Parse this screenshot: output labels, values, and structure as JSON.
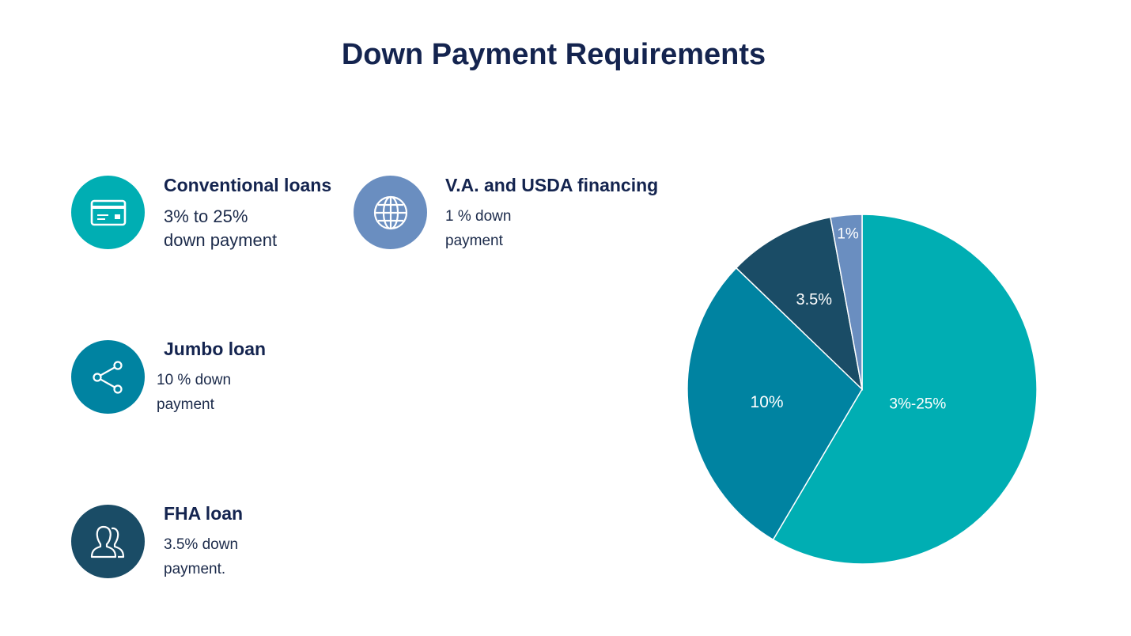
{
  "title": "Down Payment Requirements",
  "items": [
    {
      "title": "Conventional loans",
      "desc_line1": "3% to 25%",
      "desc_line2": "down payment",
      "icon": "credit-card-icon",
      "color": "#00AEB3"
    },
    {
      "title": "V.A. and USDA financing",
      "desc_line1": "1 % down",
      "desc_line2": "payment",
      "icon": "globe-icon",
      "color": "#6A8EC0"
    },
    {
      "title": "Jumbo loan",
      "desc_line1": "10 % down",
      "desc_line2": "payment",
      "icon": "share-icon",
      "color": "#0083A1"
    },
    {
      "title": "FHA loan",
      "desc_line1": "3.5% down",
      "desc_line2": "payment.",
      "icon": "users-icon",
      "color": "#1A4C66"
    }
  ],
  "chart_data": {
    "type": "pie",
    "title": "",
    "start": "12 o'clock",
    "direction": "clockwise",
    "slices": [
      {
        "label": "3%-25%",
        "value": 58.5,
        "color": "#00AEB3"
      },
      {
        "label": "10%",
        "value": 28.7,
        "color": "#0083A1"
      },
      {
        "label": "3.5%",
        "value": 9.9,
        "color": "#1A4C66"
      },
      {
        "label": "1%",
        "value": 2.9,
        "color": "#6A8EC0"
      }
    ]
  }
}
